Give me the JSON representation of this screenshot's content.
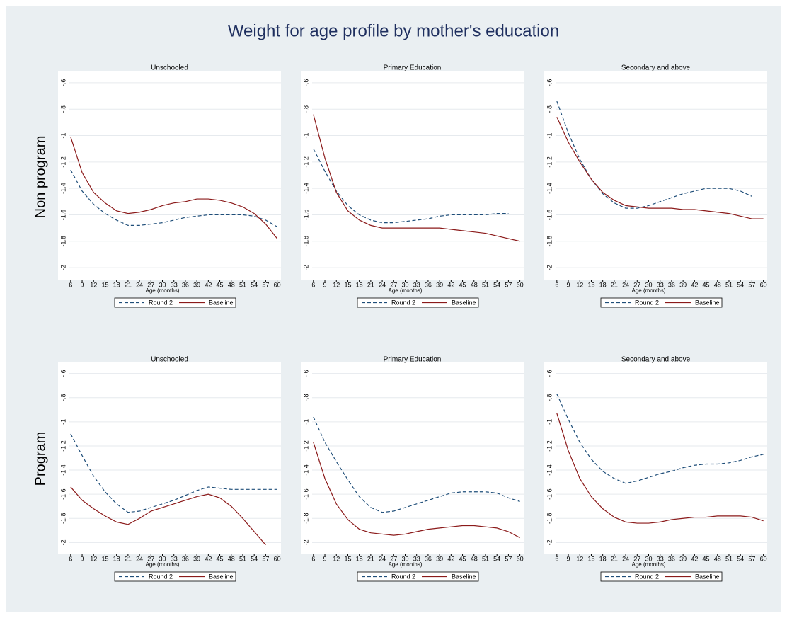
{
  "title": "Weight for age profile by mother's education",
  "row_labels": [
    "Non program",
    "Program"
  ],
  "chart_data": [
    {
      "type": "line",
      "title": "Unschooled",
      "xlabel": "Age (months)",
      "x": [
        6,
        9,
        12,
        15,
        18,
        21,
        24,
        27,
        30,
        33,
        36,
        39,
        42,
        45,
        48,
        51,
        54,
        57,
        60
      ],
      "xlim": [
        2.7,
        61
      ],
      "xticks": [
        6,
        9,
        12,
        15,
        18,
        21,
        24,
        27,
        30,
        33,
        36,
        39,
        42,
        45,
        48,
        51,
        54,
        57,
        60
      ],
      "ylim": [
        -2.08,
        -0.52
      ],
      "yticks": [
        {
          "value": -0.6,
          "label": "-.6"
        },
        {
          "value": -0.8,
          "label": "-.8"
        },
        -1,
        -1.2,
        -1.4,
        -1.6,
        -1.8,
        -2
      ],
      "grid": true,
      "series": [
        {
          "name": "Round 2",
          "color": "#1f4e79",
          "line_style": "dashed",
          "values": [
            -1.26,
            -1.42,
            -1.52,
            -1.59,
            -1.64,
            -1.68,
            -1.68,
            -1.67,
            -1.66,
            -1.64,
            -1.62,
            -1.61,
            -1.6,
            -1.6,
            -1.6,
            -1.6,
            -1.61,
            -1.64,
            -1.69
          ]
        },
        {
          "name": "Baseline",
          "color": "#8b1a1a",
          "line_style": "solid",
          "values": [
            -1.01,
            -1.28,
            -1.43,
            -1.51,
            -1.57,
            -1.59,
            -1.58,
            -1.56,
            -1.53,
            -1.51,
            -1.5,
            -1.48,
            -1.48,
            -1.49,
            -1.51,
            -1.54,
            -1.59,
            -1.67,
            -1.78
          ]
        }
      ]
    },
    {
      "type": "line",
      "title": "Primary Education",
      "xlabel": "Age (months)",
      "x": [
        6,
        9,
        12,
        15,
        18,
        21,
        24,
        27,
        30,
        33,
        36,
        39,
        42,
        45,
        48,
        51,
        54,
        57,
        60
      ],
      "xlim": [
        2.7,
        61
      ],
      "xticks": [
        6,
        9,
        12,
        15,
        18,
        21,
        24,
        27,
        30,
        33,
        36,
        39,
        42,
        45,
        48,
        51,
        54,
        57,
        60
      ],
      "ylim": [
        -2.08,
        -0.52
      ],
      "yticks": [
        {
          "value": -0.6,
          "label": "-.6"
        },
        {
          "value": -0.8,
          "label": "-.8"
        },
        -1,
        -1.2,
        -1.4,
        -1.6,
        -1.8,
        -2
      ],
      "grid": true,
      "series": [
        {
          "name": "Round 2",
          "color": "#1f4e79",
          "line_style": "dashed",
          "values": [
            -1.1,
            -1.27,
            -1.42,
            -1.53,
            -1.6,
            -1.64,
            -1.66,
            -1.66,
            -1.65,
            -1.64,
            -1.63,
            -1.61,
            -1.6,
            -1.6,
            -1.6,
            -1.6,
            -1.59,
            -1.59,
            null
          ]
        },
        {
          "name": "Baseline",
          "color": "#8b1a1a",
          "line_style": "solid",
          "values": [
            -0.84,
            -1.17,
            -1.43,
            -1.57,
            -1.64,
            -1.68,
            -1.7,
            -1.7,
            -1.7,
            -1.7,
            -1.7,
            -1.7,
            -1.71,
            -1.72,
            -1.73,
            -1.74,
            -1.76,
            -1.78,
            -1.8
          ]
        }
      ]
    },
    {
      "type": "line",
      "title": "Secondary and above",
      "xlabel": "Age (months)",
      "x": [
        6,
        9,
        12,
        15,
        18,
        21,
        24,
        27,
        30,
        33,
        36,
        39,
        42,
        45,
        48,
        51,
        54,
        57,
        60
      ],
      "xlim": [
        2.7,
        61
      ],
      "xticks": [
        6,
        9,
        12,
        15,
        18,
        21,
        24,
        27,
        30,
        33,
        36,
        39,
        42,
        45,
        48,
        51,
        54,
        57,
        60
      ],
      "ylim": [
        -2.08,
        -0.52
      ],
      "yticks": [
        {
          "value": -0.6,
          "label": "-.6"
        },
        {
          "value": -0.8,
          "label": "-.8"
        },
        -1,
        -1.2,
        -1.4,
        -1.6,
        -1.8,
        -2
      ],
      "grid": true,
      "series": [
        {
          "name": "Round 2",
          "color": "#1f4e79",
          "line_style": "dashed",
          "values": [
            -0.74,
            -0.98,
            -1.18,
            -1.33,
            -1.44,
            -1.51,
            -1.55,
            -1.55,
            -1.53,
            -1.5,
            -1.47,
            -1.44,
            -1.42,
            -1.4,
            -1.4,
            -1.4,
            -1.42,
            -1.46,
            null
          ]
        },
        {
          "name": "Baseline",
          "color": "#8b1a1a",
          "line_style": "solid",
          "values": [
            -0.86,
            -1.05,
            -1.2,
            -1.33,
            -1.43,
            -1.49,
            -1.53,
            -1.54,
            -1.55,
            -1.55,
            -1.55,
            -1.56,
            -1.56,
            -1.57,
            -1.58,
            -1.59,
            -1.61,
            -1.63,
            -1.63
          ]
        }
      ]
    },
    {
      "type": "line",
      "title": "Unschooled",
      "xlabel": "Age (months)",
      "x": [
        6,
        9,
        12,
        15,
        18,
        21,
        24,
        27,
        30,
        33,
        36,
        39,
        42,
        45,
        48,
        51,
        54,
        57,
        60
      ],
      "xlim": [
        2.7,
        61
      ],
      "xticks": [
        6,
        9,
        12,
        15,
        18,
        21,
        24,
        27,
        30,
        33,
        36,
        39,
        42,
        45,
        48,
        51,
        54,
        57,
        60
      ],
      "ylim": [
        -2.08,
        -0.52
      ],
      "yticks": [
        {
          "value": -0.6,
          "label": "-.6"
        },
        {
          "value": -0.8,
          "label": "-.8"
        },
        -1,
        -1.2,
        -1.4,
        -1.6,
        -1.8,
        -2
      ],
      "grid": true,
      "series": [
        {
          "name": "Round 2",
          "color": "#1f4e79",
          "line_style": "dashed",
          "values": [
            -1.1,
            -1.28,
            -1.45,
            -1.58,
            -1.68,
            -1.75,
            -1.74,
            -1.71,
            -1.68,
            -1.65,
            -1.61,
            -1.57,
            -1.54,
            -1.55,
            -1.56,
            -1.56,
            -1.56,
            -1.56,
            -1.56
          ]
        },
        {
          "name": "Baseline",
          "color": "#8b1a1a",
          "line_style": "solid",
          "values": [
            -1.54,
            -1.65,
            -1.72,
            -1.78,
            -1.83,
            -1.85,
            -1.8,
            -1.74,
            -1.71,
            -1.68,
            -1.65,
            -1.62,
            -1.6,
            -1.63,
            -1.7,
            -1.8,
            -1.91,
            -2.02,
            null
          ]
        }
      ]
    },
    {
      "type": "line",
      "title": "Primary Education",
      "xlabel": "Age (months)",
      "x": [
        6,
        9,
        12,
        15,
        18,
        21,
        24,
        27,
        30,
        33,
        36,
        39,
        42,
        45,
        48,
        51,
        54,
        57,
        60
      ],
      "xlim": [
        2.7,
        61
      ],
      "xticks": [
        6,
        9,
        12,
        15,
        18,
        21,
        24,
        27,
        30,
        33,
        36,
        39,
        42,
        45,
        48,
        51,
        54,
        57,
        60
      ],
      "ylim": [
        -2.08,
        -0.52
      ],
      "yticks": [
        {
          "value": -0.6,
          "label": "-.6"
        },
        {
          "value": -0.8,
          "label": "-.8"
        },
        -1,
        -1.2,
        -1.4,
        -1.6,
        -1.8,
        -2
      ],
      "grid": true,
      "series": [
        {
          "name": "Round 2",
          "color": "#1f4e79",
          "line_style": "dashed",
          "values": [
            -0.96,
            -1.17,
            -1.33,
            -1.48,
            -1.62,
            -1.71,
            -1.75,
            -1.74,
            -1.71,
            -1.68,
            -1.65,
            -1.62,
            -1.59,
            -1.58,
            -1.58,
            -1.58,
            -1.59,
            -1.63,
            -1.66
          ]
        },
        {
          "name": "Baseline",
          "color": "#8b1a1a",
          "line_style": "solid",
          "values": [
            -1.17,
            -1.47,
            -1.68,
            -1.81,
            -1.89,
            -1.92,
            -1.93,
            -1.94,
            -1.93,
            -1.91,
            -1.89,
            -1.88,
            -1.87,
            -1.86,
            -1.86,
            -1.87,
            -1.88,
            -1.91,
            -1.96
          ]
        }
      ]
    },
    {
      "type": "line",
      "title": "Secondary and above",
      "xlabel": "Age (months)",
      "x": [
        6,
        9,
        12,
        15,
        18,
        21,
        24,
        27,
        30,
        33,
        36,
        39,
        42,
        45,
        48,
        51,
        54,
        57,
        60
      ],
      "xlim": [
        2.7,
        61
      ],
      "xticks": [
        6,
        9,
        12,
        15,
        18,
        21,
        24,
        27,
        30,
        33,
        36,
        39,
        42,
        45,
        48,
        51,
        54,
        57,
        60
      ],
      "ylim": [
        -2.08,
        -0.52
      ],
      "yticks": [
        {
          "value": -0.6,
          "label": "-.6"
        },
        {
          "value": -0.8,
          "label": "-.8"
        },
        -1,
        -1.2,
        -1.4,
        -1.6,
        -1.8,
        -2
      ],
      "grid": true,
      "series": [
        {
          "name": "Round 2",
          "color": "#1f4e79",
          "line_style": "dashed",
          "values": [
            -0.77,
            -0.98,
            -1.17,
            -1.31,
            -1.41,
            -1.47,
            -1.51,
            -1.49,
            -1.46,
            -1.43,
            -1.41,
            -1.38,
            -1.36,
            -1.35,
            -1.35,
            -1.34,
            -1.32,
            -1.29,
            -1.27
          ]
        },
        {
          "name": "Baseline",
          "color": "#8b1a1a",
          "line_style": "solid",
          "values": [
            -0.93,
            -1.24,
            -1.47,
            -1.62,
            -1.72,
            -1.79,
            -1.83,
            -1.84,
            -1.84,
            -1.83,
            -1.81,
            -1.8,
            -1.79,
            -1.79,
            -1.78,
            -1.78,
            -1.78,
            -1.79,
            -1.82
          ]
        }
      ]
    }
  ]
}
